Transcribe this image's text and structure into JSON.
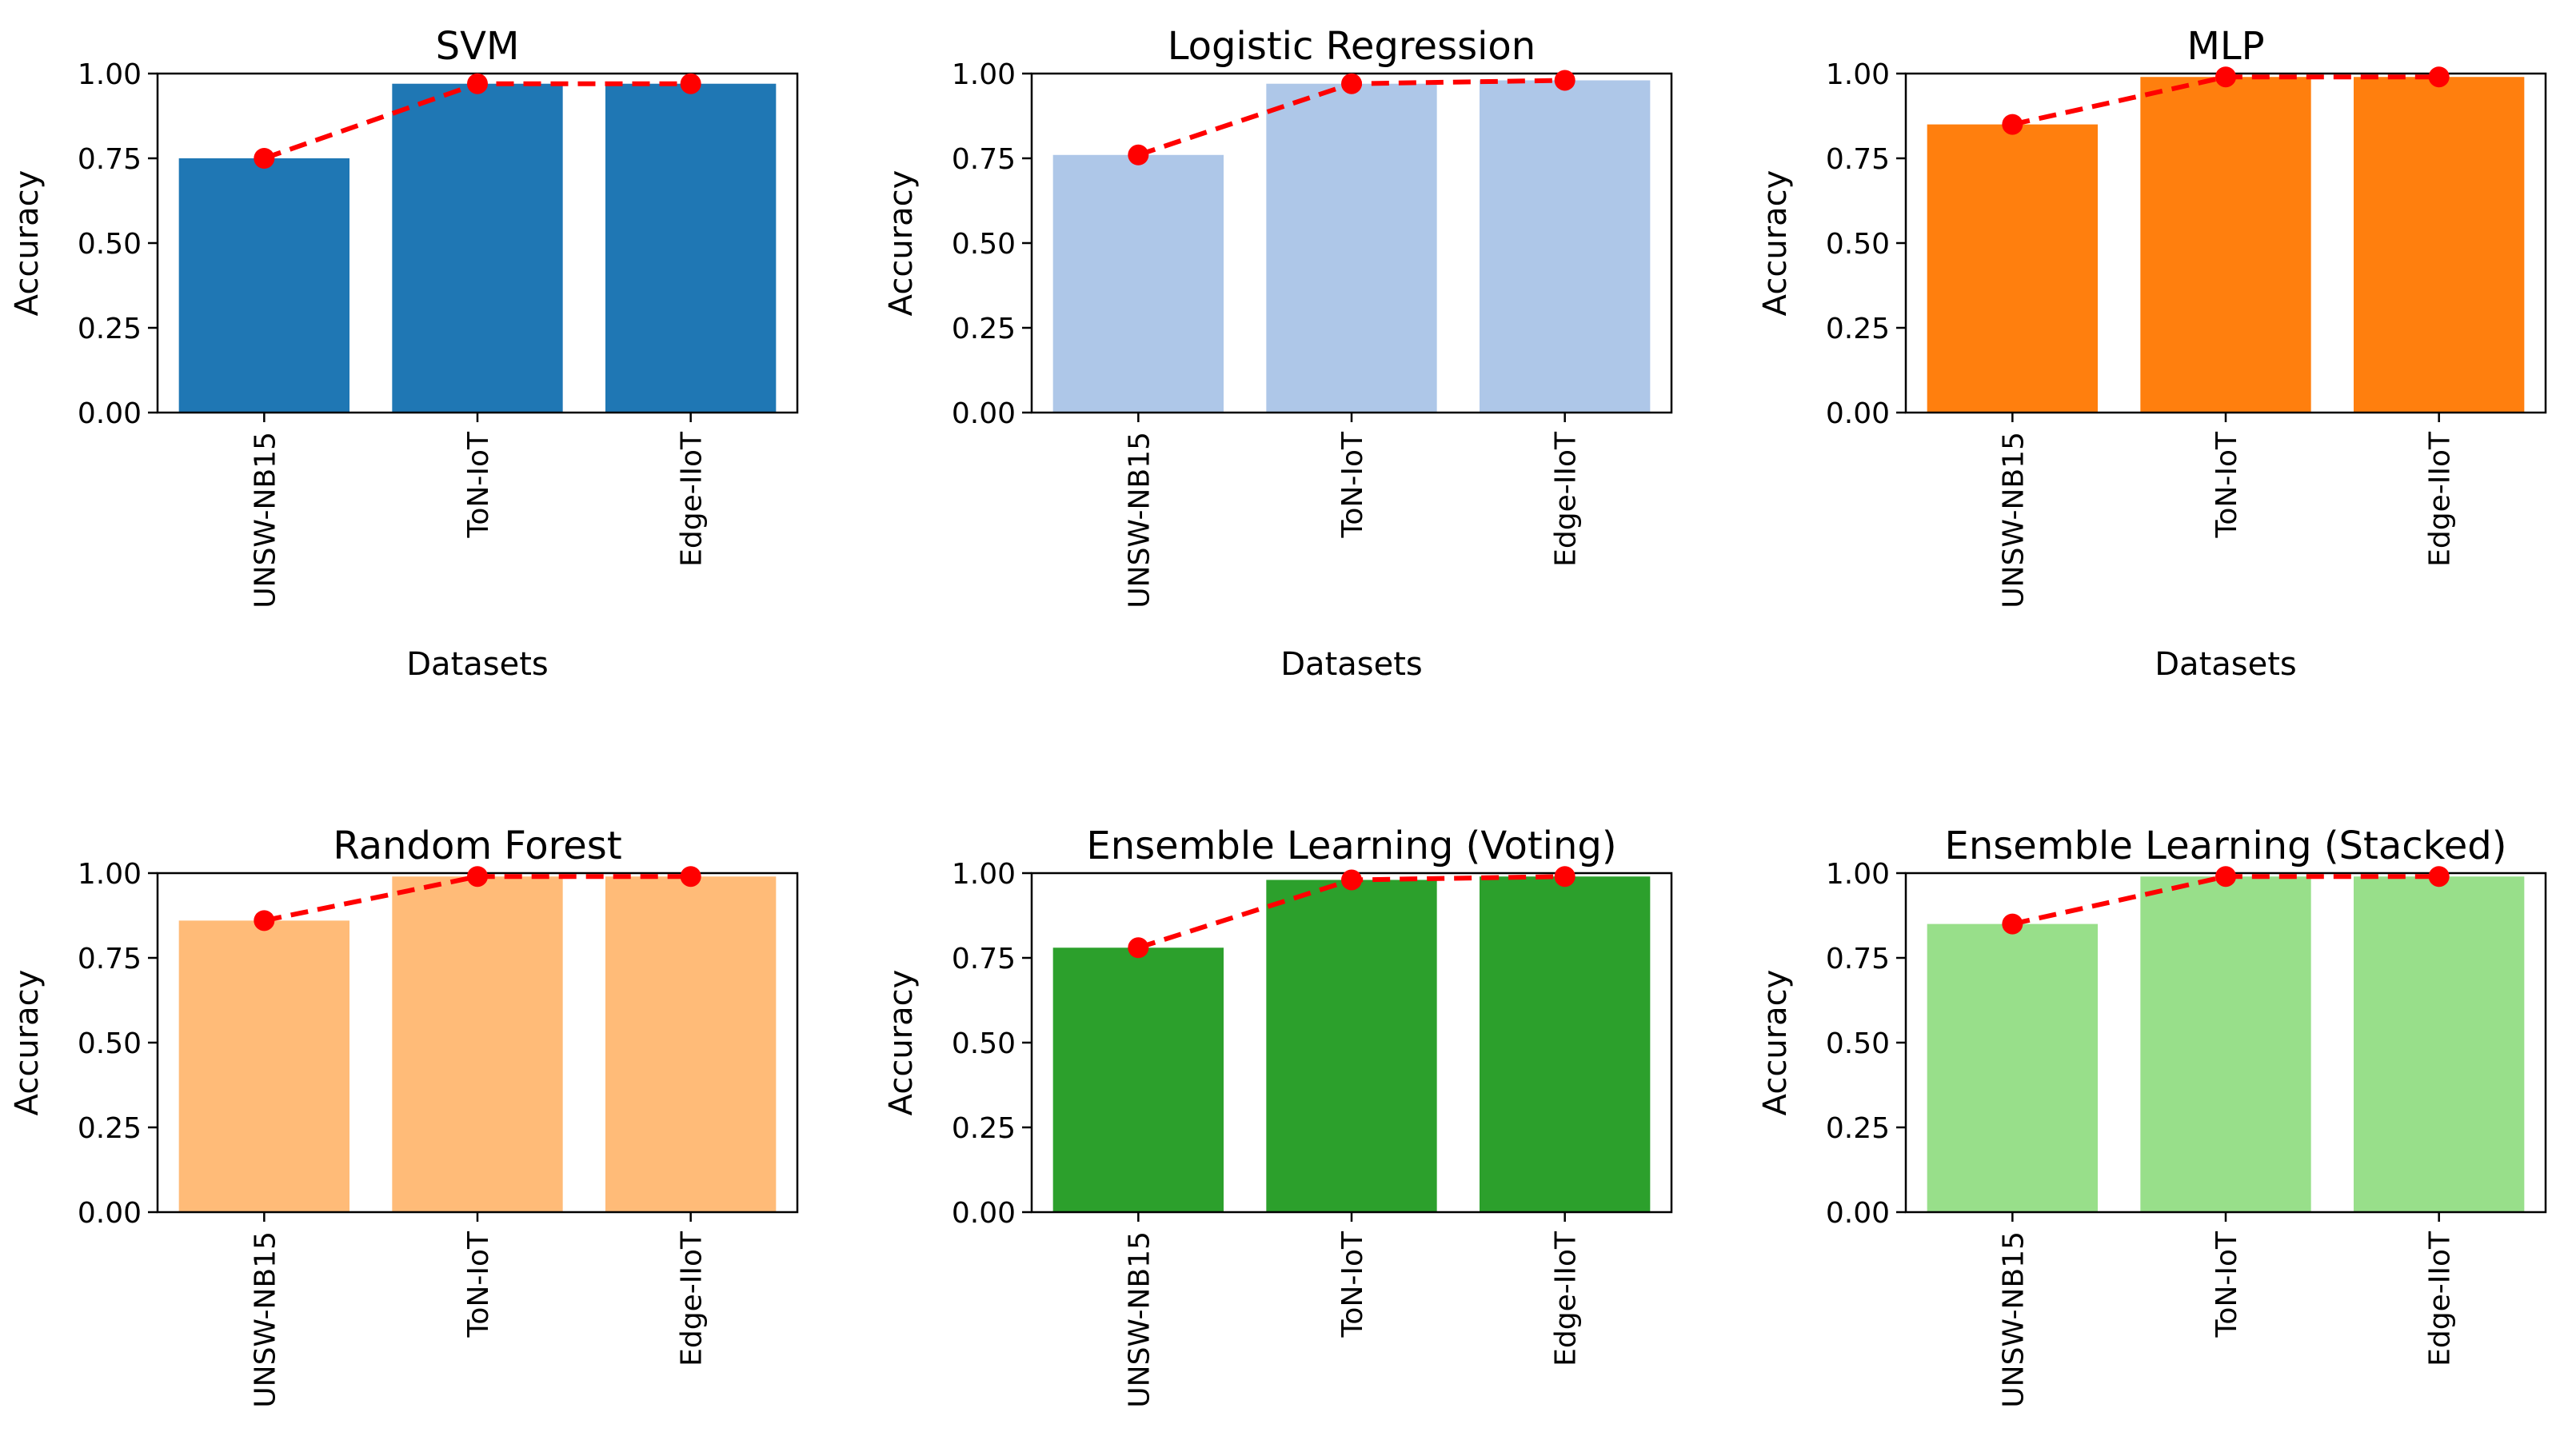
{
  "chart_data": [
    {
      "type": "bar",
      "title": "SVM",
      "xlabel": "Datasets",
      "ylabel": "Accuracy",
      "categories": [
        "UNSW-NB15",
        "ToN-IoT",
        "Edge-IIoT"
      ],
      "values": [
        0.75,
        0.97,
        0.97
      ],
      "ylim": [
        0,
        1.0
      ],
      "yticks": [
        "0.00",
        "0.25",
        "0.50",
        "0.75",
        "1.00"
      ],
      "bar_color": "#1f77b4",
      "line_color": "#ff0000",
      "line_style": "dashed with circle markers"
    },
    {
      "type": "bar",
      "title": "Logistic Regression",
      "xlabel": "Datasets",
      "ylabel": "Accuracy",
      "categories": [
        "UNSW-NB15",
        "ToN-IoT",
        "Edge-IIoT"
      ],
      "values": [
        0.76,
        0.97,
        0.98
      ],
      "ylim": [
        0,
        1.0
      ],
      "yticks": [
        "0.00",
        "0.25",
        "0.50",
        "0.75",
        "1.00"
      ],
      "bar_color": "#aec7e8",
      "line_color": "#ff0000",
      "line_style": "dashed with circle markers"
    },
    {
      "type": "bar",
      "title": "MLP",
      "xlabel": "Datasets",
      "ylabel": "Accuracy",
      "categories": [
        "UNSW-NB15",
        "ToN-IoT",
        "Edge-IIoT"
      ],
      "values": [
        0.85,
        0.99,
        0.99
      ],
      "ylim": [
        0,
        1.0
      ],
      "yticks": [
        "0.00",
        "0.25",
        "0.50",
        "0.75",
        "1.00"
      ],
      "bar_color": "#ff7f0e",
      "line_color": "#ff0000",
      "line_style": "dashed with circle markers"
    },
    {
      "type": "bar",
      "title": "Random Forest",
      "xlabel": "",
      "ylabel": "Accuracy",
      "categories": [
        "UNSW-NB15",
        "ToN-IoT",
        "Edge-IIoT"
      ],
      "values": [
        0.86,
        0.99,
        0.99
      ],
      "ylim": [
        0,
        1.0
      ],
      "yticks": [
        "0.00",
        "0.25",
        "0.50",
        "0.75",
        "1.00"
      ],
      "bar_color": "#ffbb78",
      "line_color": "#ff0000",
      "line_style": "dashed with circle markers"
    },
    {
      "type": "bar",
      "title": "Ensemble Learning (Voting)",
      "xlabel": "",
      "ylabel": "Accuracy",
      "categories": [
        "UNSW-NB15",
        "ToN-IoT",
        "Edge-IIoT"
      ],
      "values": [
        0.78,
        0.98,
        0.99
      ],
      "ylim": [
        0,
        1.0
      ],
      "yticks": [
        "0.00",
        "0.25",
        "0.50",
        "0.75",
        "1.00"
      ],
      "bar_color": "#2ca02c",
      "line_color": "#ff0000",
      "line_style": "dashed with circle markers"
    },
    {
      "type": "bar",
      "title": "Ensemble Learning (Stacked)",
      "xlabel": "",
      "ylabel": "Accuracy",
      "categories": [
        "UNSW-NB15",
        "ToN-IoT",
        "Edge-IIoT"
      ],
      "values": [
        0.85,
        0.99,
        0.99
      ],
      "ylim": [
        0,
        1.0
      ],
      "yticks": [
        "0.00",
        "0.25",
        "0.50",
        "0.75",
        "1.00"
      ],
      "bar_color": "#98df8a",
      "line_color": "#ff0000",
      "line_style": "dashed with circle markers"
    }
  ]
}
